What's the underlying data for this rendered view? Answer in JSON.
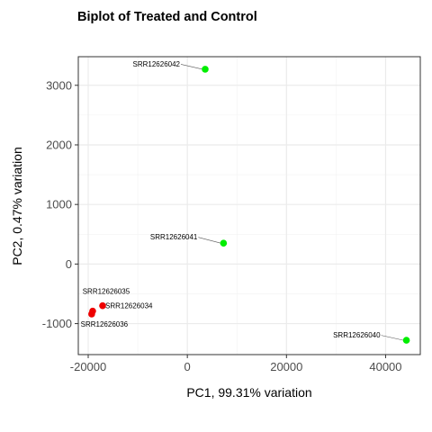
{
  "chart_data": {
    "type": "scatter",
    "title": "Biplot of Treated and Control",
    "xlabel": "PC1, 99.31% variation",
    "ylabel": "PC2, 0.47% variation",
    "xlim": [
      -22000,
      47000
    ],
    "ylim": [
      -1520,
      3480
    ],
    "xticks": [
      -20000,
      0,
      20000,
      40000
    ],
    "xtick_labels": [
      "-20000",
      "0",
      "20000",
      "40000"
    ],
    "yticks": [
      -1000,
      0,
      1000,
      2000,
      3000
    ],
    "ytick_labels": [
      "-1000",
      "0",
      "1000",
      "2000",
      "3000"
    ],
    "grid": true,
    "legend": "none",
    "colors": {
      "green": "#00ee00",
      "red": "#ee0000"
    },
    "points": [
      {
        "label": "SRR12626042",
        "x": 3600,
        "y": 3270,
        "color": "#00ee00"
      },
      {
        "label": "SRR12626041",
        "x": 7300,
        "y": 350,
        "color": "#00ee00"
      },
      {
        "label": "SRR12626040",
        "x": 44200,
        "y": -1280,
        "color": "#00ee00"
      },
      {
        "label": "SRR12626035",
        "x": -19100,
        "y": -790,
        "color": "#ee0000"
      },
      {
        "label": "SRR12626034",
        "x": -17100,
        "y": -700,
        "color": "#ee0000"
      },
      {
        "label": "SRR12626036",
        "x": -19300,
        "y": -840,
        "color": "#ee0000"
      }
    ]
  }
}
